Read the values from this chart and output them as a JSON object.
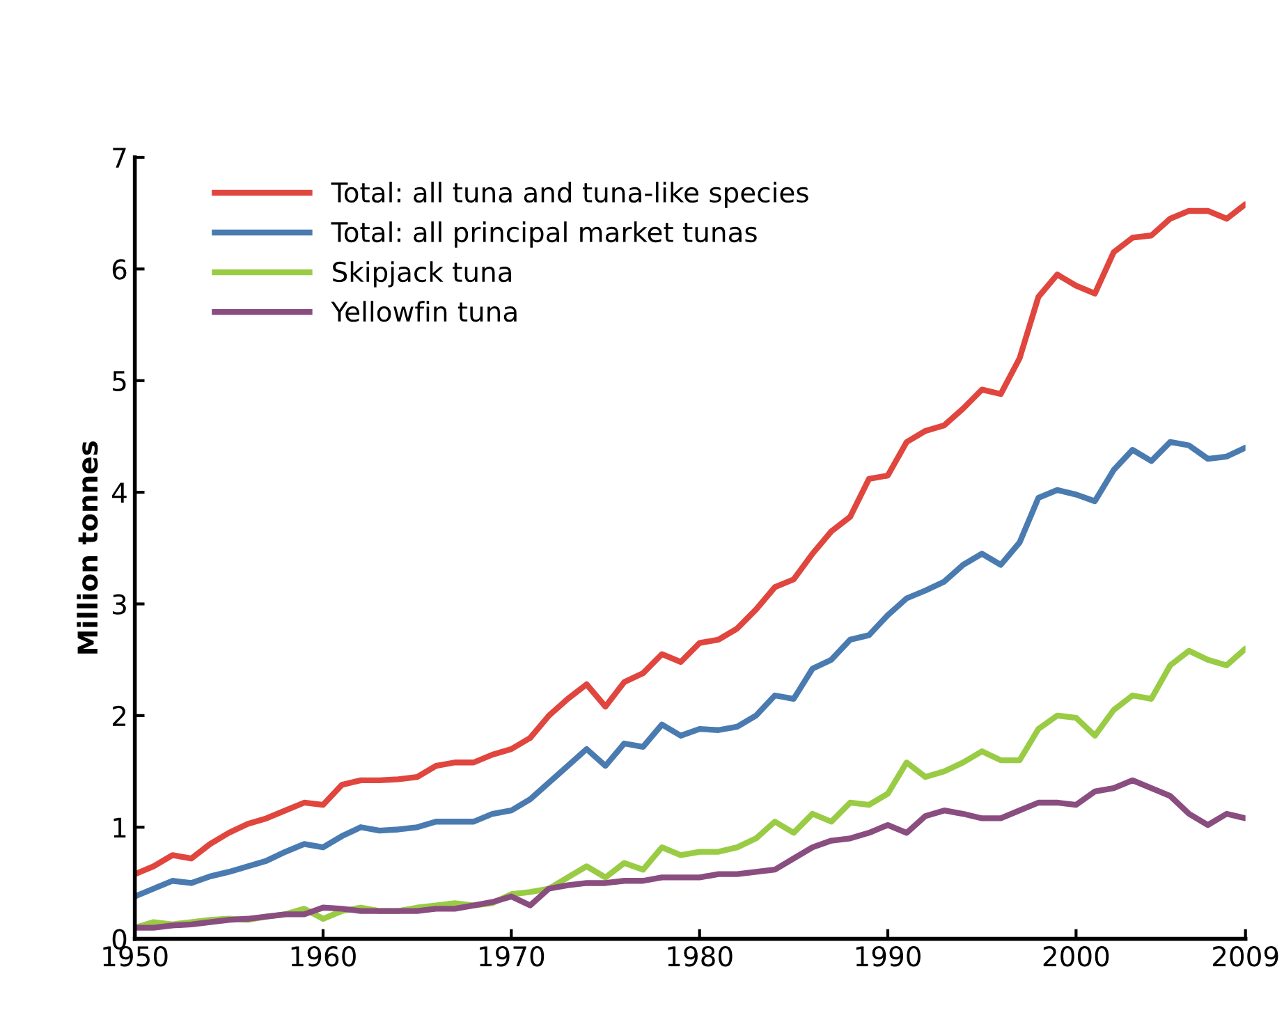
{
  "chart_data": {
    "type": "line",
    "ylabel": "Million tonnes",
    "x": [
      1950,
      1951,
      1952,
      1953,
      1954,
      1955,
      1956,
      1957,
      1958,
      1959,
      1960,
      1961,
      1962,
      1963,
      1964,
      1965,
      1966,
      1967,
      1968,
      1969,
      1970,
      1971,
      1972,
      1973,
      1974,
      1975,
      1976,
      1977,
      1978,
      1979,
      1980,
      1981,
      1982,
      1983,
      1984,
      1985,
      1986,
      1987,
      1988,
      1989,
      1990,
      1991,
      1992,
      1993,
      1994,
      1995,
      1996,
      1997,
      1998,
      1999,
      2000,
      2001,
      2002,
      2003,
      2004,
      2005,
      2006,
      2007,
      2008,
      2009
    ],
    "series": [
      {
        "name": "Total: all tuna and tuna-like species",
        "color": "#e0463e",
        "values": [
          0.58,
          0.65,
          0.75,
          0.72,
          0.85,
          0.95,
          1.03,
          1.08,
          1.15,
          1.22,
          1.2,
          1.38,
          1.42,
          1.42,
          1.43,
          1.45,
          1.55,
          1.58,
          1.58,
          1.65,
          1.7,
          1.8,
          2.0,
          2.15,
          2.28,
          2.08,
          2.3,
          2.38,
          2.55,
          2.48,
          2.65,
          2.68,
          2.78,
          2.95,
          3.15,
          3.22,
          3.45,
          3.65,
          3.78,
          4.12,
          4.15,
          4.45,
          4.55,
          4.6,
          4.75,
          4.92,
          4.88,
          5.2,
          5.75,
          5.95,
          5.85,
          5.78,
          6.15,
          6.28,
          6.3,
          6.45,
          6.52,
          6.52,
          6.45,
          6.58
        ]
      },
      {
        "name": "Total: all principal market tunas",
        "color": "#4a7bb0",
        "values": [
          0.38,
          0.45,
          0.52,
          0.5,
          0.56,
          0.6,
          0.65,
          0.7,
          0.78,
          0.85,
          0.82,
          0.92,
          1.0,
          0.97,
          0.98,
          1.0,
          1.05,
          1.05,
          1.05,
          1.12,
          1.15,
          1.25,
          1.4,
          1.55,
          1.7,
          1.55,
          1.75,
          1.72,
          1.92,
          1.82,
          1.88,
          1.87,
          1.9,
          2.0,
          2.18,
          2.15,
          2.42,
          2.5,
          2.68,
          2.72,
          2.9,
          3.05,
          3.12,
          3.2,
          3.35,
          3.45,
          3.35,
          3.55,
          3.95,
          4.02,
          3.98,
          3.92,
          4.2,
          4.38,
          4.28,
          4.45,
          4.42,
          4.3,
          4.32,
          4.4
        ]
      },
      {
        "name": "Skipjack tuna",
        "color": "#99cc44",
        "values": [
          0.1,
          0.15,
          0.13,
          0.15,
          0.17,
          0.18,
          0.17,
          0.2,
          0.22,
          0.27,
          0.18,
          0.25,
          0.28,
          0.25,
          0.25,
          0.28,
          0.3,
          0.32,
          0.3,
          0.32,
          0.4,
          0.42,
          0.45,
          0.55,
          0.65,
          0.55,
          0.68,
          0.62,
          0.82,
          0.75,
          0.78,
          0.78,
          0.82,
          0.9,
          1.05,
          0.95,
          1.12,
          1.05,
          1.22,
          1.2,
          1.3,
          1.58,
          1.45,
          1.5,
          1.58,
          1.68,
          1.6,
          1.6,
          1.88,
          2.0,
          1.98,
          1.82,
          2.05,
          2.18,
          2.15,
          2.45,
          2.58,
          2.5,
          2.45,
          2.6
        ]
      },
      {
        "name": "Yellowfin tuna",
        "color": "#8a4d80",
        "values": [
          0.1,
          0.1,
          0.12,
          0.13,
          0.15,
          0.17,
          0.18,
          0.2,
          0.22,
          0.22,
          0.28,
          0.27,
          0.25,
          0.25,
          0.25,
          0.25,
          0.27,
          0.27,
          0.3,
          0.33,
          0.38,
          0.3,
          0.45,
          0.48,
          0.5,
          0.5,
          0.52,
          0.52,
          0.55,
          0.55,
          0.55,
          0.58,
          0.58,
          0.6,
          0.62,
          0.72,
          0.82,
          0.88,
          0.9,
          0.95,
          1.02,
          0.95,
          1.1,
          1.15,
          1.12,
          1.08,
          1.08,
          1.15,
          1.22,
          1.22,
          1.2,
          1.32,
          1.35,
          1.42,
          1.35,
          1.28,
          1.12,
          1.02,
          1.12,
          1.08
        ]
      }
    ],
    "xlim": [
      1950,
      2009
    ],
    "xticks": [
      1950,
      1960,
      1970,
      1980,
      1990,
      2000,
      2009
    ],
    "ylim": [
      0,
      7
    ],
    "yticks": [
      0,
      1,
      2,
      3,
      4,
      5,
      6,
      7
    ],
    "grid": false,
    "legend": "top left",
    "marker": "none",
    "line_style": "solid"
  }
}
